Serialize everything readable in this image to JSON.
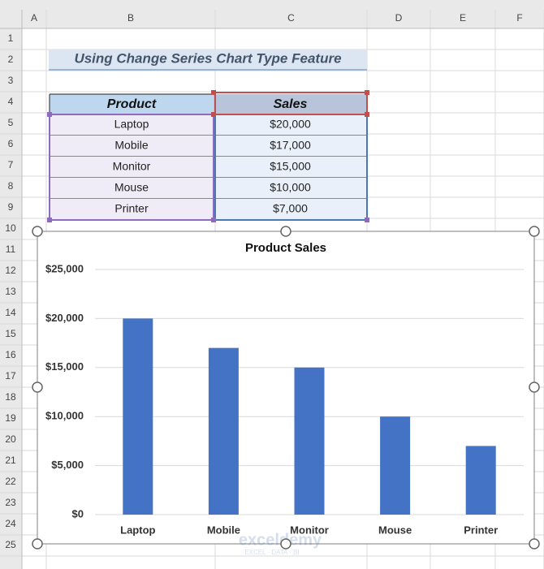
{
  "spreadsheet": {
    "column_headers": [
      "A",
      "B",
      "C",
      "D",
      "E",
      "F"
    ],
    "row_headers": [
      "1",
      "2",
      "3",
      "4",
      "5",
      "6",
      "7",
      "8",
      "9",
      "10",
      "11",
      "12",
      "13",
      "14",
      "15",
      "16",
      "17",
      "18",
      "19",
      "20",
      "21",
      "22",
      "23",
      "24",
      "25"
    ],
    "title": "Using Change Series Chart Type Feature",
    "table": {
      "header": [
        "Product",
        "Sales"
      ],
      "rows": [
        [
          "Laptop",
          "$20,000"
        ],
        [
          "Mobile",
          "$17,000"
        ],
        [
          "Monitor",
          "$15,000"
        ],
        [
          "Mouse",
          "$10,000"
        ],
        [
          "Printer",
          "$7,000"
        ]
      ]
    },
    "watermark": {
      "name": "exceldemy",
      "tagline": "EXCEL · DATA · BI"
    }
  },
  "chart_data": {
    "type": "bar",
    "title": "Product Sales",
    "categories": [
      "Laptop",
      "Mobile",
      "Monitor",
      "Mouse",
      "Printer"
    ],
    "values": [
      20000,
      17000,
      15000,
      10000,
      7000
    ],
    "color": "#4472c4",
    "ylim": [
      0,
      25000
    ],
    "yticks": [
      {
        "value": 0,
        "label": "$0"
      },
      {
        "value": 5000,
        "label": "$5,000"
      },
      {
        "value": 10000,
        "label": "$10,000"
      },
      {
        "value": 15000,
        "label": "$15,000"
      },
      {
        "value": 20000,
        "label": "$20,000"
      },
      {
        "value": 25000,
        "label": "$25,000"
      }
    ],
    "grid": true
  }
}
